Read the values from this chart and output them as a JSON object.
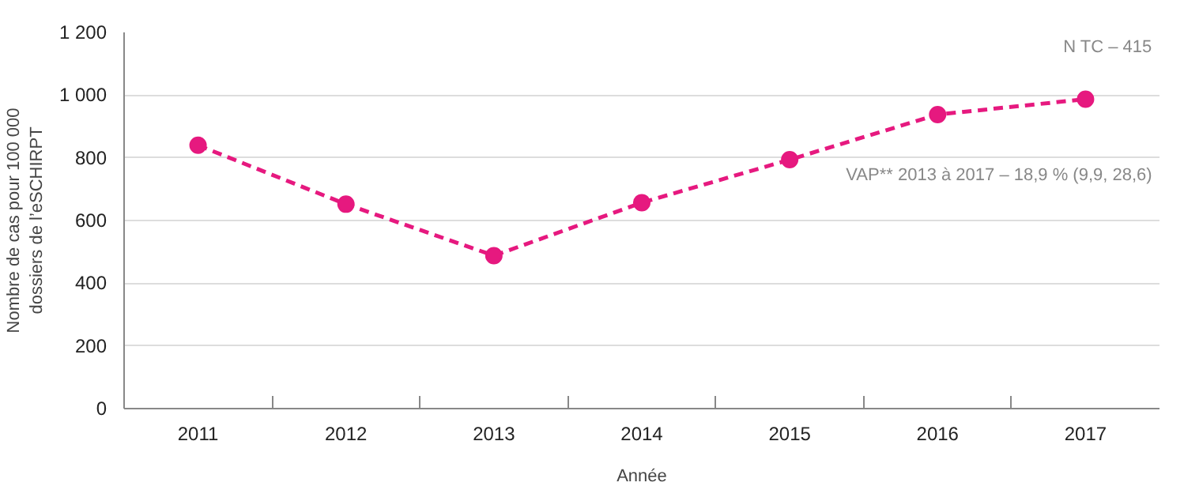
{
  "chart_data": {
    "type": "line",
    "xlabel": "Année",
    "ylabel": "Nombre de cas pour 100 000\ndossiers de l’eSCHIRPT",
    "categories": [
      "2011",
      "2012",
      "2013",
      "2014",
      "2015",
      "2016",
      "2017"
    ],
    "series": [
      {
        "color": "#e6197f",
        "values": [
          840,
          652,
          488,
          657,
          794,
          938,
          987
        ]
      }
    ],
    "ylim": [
      0,
      1200
    ],
    "yticks": [
      0,
      200,
      400,
      600,
      800,
      {
        "value": 1000,
        "label": "1 000"
      },
      {
        "value": 1200,
        "label": "1 200"
      }
    ],
    "grid": "y",
    "marker": "circle",
    "line_style": "dashed",
    "annotations": [
      "N TC – 415",
      "VAP** 2013 à 2017 – 18,9 % (9,9, 28,6)"
    ]
  }
}
